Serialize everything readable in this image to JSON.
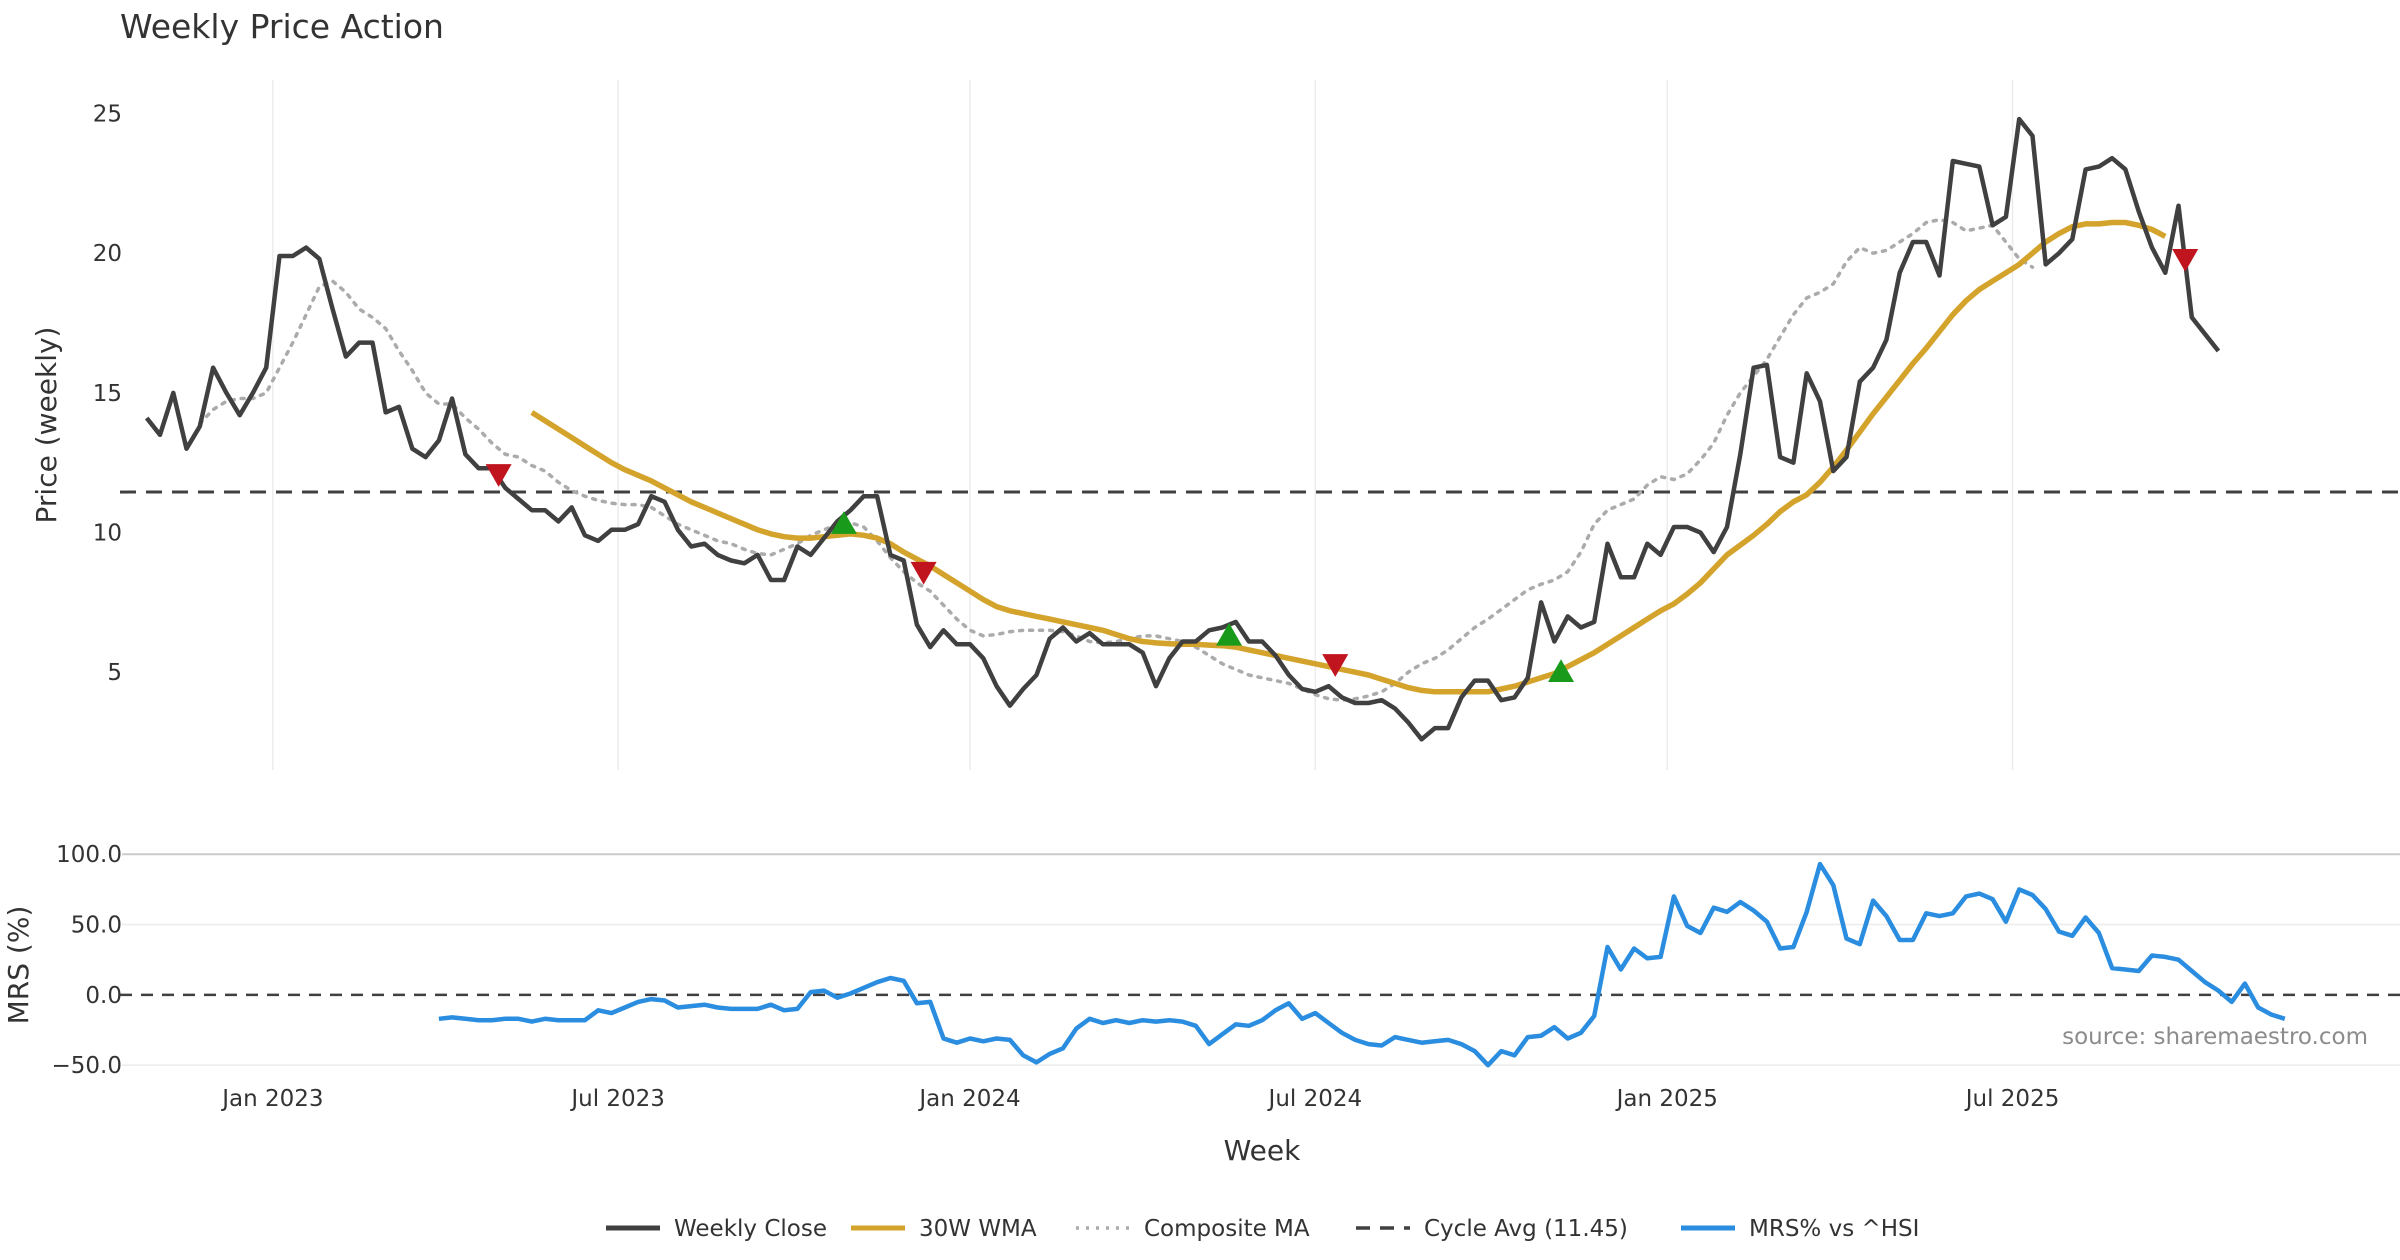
{
  "chart_data": [
    {
      "type": "line",
      "title": "Weekly Price Action",
      "ylabel": "Price (weekly)",
      "xlabel": "Week",
      "ylim": [
        1.5,
        26.2
      ],
      "yticks": [
        5,
        10,
        15,
        20,
        25
      ],
      "x_range_weeks": [
        0,
        155
      ],
      "x_tick_labels": [
        {
          "label": "Jan 2023",
          "week": 9.5
        },
        {
          "label": "Jul 2023",
          "week": 35.5
        },
        {
          "label": "Jan 2024",
          "week": 62
        },
        {
          "label": "Jul 2024",
          "week": 88
        },
        {
          "label": "Jan 2025",
          "week": 114.5
        },
        {
          "label": "Jul 2025",
          "week": 140.5
        }
      ],
      "cycle_avg": 11.45,
      "series": [
        {
          "name": "Weekly Close",
          "color": "#404040",
          "start_week": 0,
          "values": [
            14.1,
            13.5,
            15.0,
            13.0,
            13.8,
            15.9,
            15.0,
            14.2,
            15.0,
            15.9,
            19.9,
            19.9,
            20.2,
            19.8,
            18.0,
            16.3,
            16.8,
            16.8,
            14.3,
            14.5,
            13.0,
            12.7,
            13.3,
            14.8,
            12.8,
            12.3,
            12.3,
            11.6,
            11.2,
            10.8,
            10.8,
            10.4,
            10.9,
            9.9,
            9.7,
            10.1,
            10.1,
            10.3,
            11.3,
            11.1,
            10.1,
            9.5,
            9.6,
            9.2,
            9.0,
            8.9,
            9.2,
            8.3,
            8.3,
            9.5,
            9.2,
            9.8,
            10.4,
            10.8,
            11.3,
            11.3,
            9.2,
            9.0,
            6.7,
            5.9,
            6.5,
            6.0,
            6.0,
            5.5,
            4.5,
            3.8,
            4.4,
            4.9,
            6.2,
            6.6,
            6.1,
            6.4,
            6.0,
            6.0,
            6.0,
            5.7,
            4.5,
            5.5,
            6.1,
            6.1,
            6.5,
            6.6,
            6.8,
            6.1,
            6.1,
            5.6,
            4.9,
            4.4,
            4.3,
            4.5,
            4.1,
            3.9,
            3.9,
            4.0,
            3.7,
            3.2,
            2.6,
            3.0,
            3.0,
            4.1,
            4.7,
            4.7,
            4.0,
            4.1,
            4.8,
            7.5,
            6.1,
            7.0,
            6.6,
            6.8,
            9.6,
            8.4,
            8.4,
            9.6,
            9.2,
            10.2,
            10.2,
            10.0,
            9.3,
            10.2,
            12.8,
            15.9,
            16.0,
            12.7,
            12.5,
            15.7,
            14.7,
            12.2,
            12.7,
            15.4,
            15.9,
            16.9,
            19.3,
            20.4,
            20.4,
            19.2,
            23.3,
            23.2,
            23.1,
            21.0,
            21.3,
            24.8,
            24.2,
            19.6,
            20.0,
            20.5,
            23.0,
            23.1,
            23.4,
            23.0,
            21.5,
            20.2,
            19.3,
            21.7,
            17.7,
            17.1,
            16.5
          ]
        },
        {
          "name": "30W WMA",
          "color": "#d4a32b",
          "start_week": 29,
          "values": [
            14.3,
            14.0,
            13.7,
            13.4,
            13.1,
            12.8,
            12.5,
            12.25,
            12.05,
            11.85,
            11.6,
            11.35,
            11.1,
            10.9,
            10.7,
            10.5,
            10.3,
            10.1,
            9.95,
            9.85,
            9.8,
            9.8,
            9.85,
            9.9,
            9.95,
            9.9,
            9.8,
            9.6,
            9.3,
            9.05,
            8.8,
            8.5,
            8.2,
            7.9,
            7.6,
            7.35,
            7.2,
            7.1,
            7.0,
            6.9,
            6.8,
            6.7,
            6.6,
            6.5,
            6.35,
            6.2,
            6.1,
            6.05,
            6.02,
            6.0,
            6.0,
            5.97,
            5.95,
            5.9,
            5.8,
            5.7,
            5.6,
            5.5,
            5.4,
            5.3,
            5.2,
            5.1,
            5.0,
            4.9,
            4.75,
            4.6,
            4.45,
            4.35,
            4.3,
            4.3,
            4.3,
            4.3,
            4.3,
            4.4,
            4.5,
            4.65,
            4.8,
            4.95,
            5.2,
            5.45,
            5.7,
            6.0,
            6.3,
            6.6,
            6.9,
            7.2,
            7.45,
            7.8,
            8.2,
            8.7,
            9.2,
            9.55,
            9.9,
            10.3,
            10.75,
            11.1,
            11.35,
            11.8,
            12.35,
            12.95,
            13.6,
            14.25,
            14.85,
            15.45,
            16.05,
            16.6,
            17.2,
            17.8,
            18.3,
            18.7,
            19.0,
            19.3,
            19.6,
            20.0,
            20.4,
            20.7,
            20.95,
            21.05,
            21.05,
            21.1,
            21.1,
            21.0,
            20.85,
            20.6
          ]
        },
        {
          "name": "Composite MA",
          "color": "#ababab",
          "dash": "dotted",
          "start_week": 4,
          "values": [
            13.9,
            14.4,
            14.7,
            14.8,
            14.8,
            15.0,
            15.9,
            16.8,
            17.8,
            18.8,
            19.0,
            18.6,
            18.0,
            17.7,
            17.3,
            16.5,
            15.8,
            15.0,
            14.6,
            14.6,
            14.1,
            13.7,
            13.2,
            12.8,
            12.7,
            12.4,
            12.2,
            11.8,
            11.5,
            11.3,
            11.15,
            11.05,
            11.0,
            11.0,
            10.9,
            10.6,
            10.3,
            10.1,
            9.9,
            9.7,
            9.6,
            9.4,
            9.25,
            9.2,
            9.4,
            9.6,
            9.9,
            10.1,
            10.3,
            10.35,
            10.2,
            9.7,
            9.1,
            8.6,
            8.2,
            7.9,
            7.4,
            6.9,
            6.5,
            6.3,
            6.35,
            6.45,
            6.5,
            6.5,
            6.5,
            6.45,
            6.3,
            6.1,
            6.05,
            6.1,
            6.2,
            6.3,
            6.3,
            6.2,
            6.1,
            5.9,
            5.6,
            5.3,
            5.1,
            4.9,
            4.8,
            4.7,
            4.6,
            4.4,
            4.2,
            4.05,
            4.0,
            4.05,
            4.15,
            4.3,
            4.6,
            5.0,
            5.3,
            5.5,
            5.8,
            6.2,
            6.6,
            6.9,
            7.25,
            7.6,
            7.95,
            8.15,
            8.3,
            8.6,
            9.3,
            10.3,
            10.8,
            11.0,
            11.2,
            11.7,
            12.0,
            11.9,
            12.1,
            12.6,
            13.2,
            14.2,
            15.0,
            15.6,
            16.2,
            17.0,
            17.8,
            18.4,
            18.6,
            18.9,
            19.7,
            20.2,
            20.0,
            20.1,
            20.4,
            20.7,
            21.1,
            21.2,
            21.1,
            20.8,
            20.9,
            21.0,
            20.4,
            19.8,
            19.5
          ]
        }
      ],
      "markers": [
        {
          "type": "sell",
          "color": "#c0141e",
          "week": 26.5,
          "value": 12.1
        },
        {
          "type": "buy",
          "color": "#1a9a1a",
          "week": 52.5,
          "value": 10.3
        },
        {
          "type": "sell",
          "color": "#c0141e",
          "week": 58.5,
          "value": 8.6
        },
        {
          "type": "buy",
          "color": "#1a9a1a",
          "week": 81.5,
          "value": 6.3
        },
        {
          "type": "sell",
          "color": "#c0141e",
          "week": 89.5,
          "value": 5.3
        },
        {
          "type": "buy",
          "color": "#1a9a1a",
          "week": 106.5,
          "value": 5.0
        },
        {
          "type": "sell",
          "color": "#c0141e",
          "week": 153.5,
          "value": 19.8
        }
      ]
    },
    {
      "type": "line",
      "ylabel": "MRS (%)",
      "ylim": [
        -52,
        103
      ],
      "yticks": [
        100.0,
        50.0,
        0.0,
        -50.0
      ],
      "ytick_labels": [
        "100.0",
        "50.0",
        "0.0",
        "−50.0"
      ],
      "series": [
        {
          "name": "MRS% vs ^HSI",
          "color": "#2a8de0",
          "start_week": 22,
          "values": [
            -17,
            -16,
            -17,
            -18,
            -18,
            -17,
            -17,
            -19,
            -17,
            -18,
            -18,
            -18,
            -11,
            -13,
            -9,
            -5,
            -3,
            -4,
            -9,
            -8,
            -7,
            -9,
            -10,
            -10,
            -10,
            -7,
            -11,
            -10,
            2,
            3,
            -2,
            1,
            5,
            9,
            12,
            10,
            -6,
            -5,
            -31,
            -34,
            -31,
            -33,
            -31,
            -32,
            -43,
            -48,
            -42,
            -38,
            -24,
            -17,
            -20,
            -18,
            -20,
            -18,
            -19,
            -18,
            -19,
            -22,
            -35,
            -28,
            -21,
            -22,
            -18,
            -11,
            -6,
            -17,
            -13,
            -20,
            -27,
            -32,
            -35,
            -36,
            -30,
            -32,
            -34,
            -33,
            -32,
            -35,
            -40,
            -50,
            -40,
            -43,
            -30,
            -29,
            -23,
            -31,
            -27,
            -15,
            34,
            18,
            33,
            26,
            27,
            70,
            49,
            44,
            62,
            59,
            66,
            60,
            52,
            33,
            34,
            59,
            93,
            78,
            40,
            36,
            67,
            56,
            39,
            39,
            58,
            56,
            58,
            70,
            72,
            68,
            52,
            75,
            71,
            61,
            45,
            42,
            55,
            44,
            19,
            18,
            17,
            28,
            27,
            25,
            17,
            9,
            3,
            -5,
            8,
            -9,
            -14,
            -17
          ]
        }
      ],
      "reference_lines": [
        0
      ]
    }
  ],
  "legend": [
    {
      "label": "Weekly Close",
      "color": "#404040",
      "style": "solid"
    },
    {
      "label": "30W WMA",
      "color": "#d4a32b",
      "style": "solid"
    },
    {
      "label": "Composite MA",
      "color": "#ababab",
      "style": "dotted"
    },
    {
      "label": "Cycle Avg (11.45)",
      "color": "#404040",
      "style": "dashed"
    },
    {
      "label": "MRS% vs ^HSI",
      "color": "#2a8de0",
      "style": "solid"
    }
  ],
  "source": "source: sharemaestro.com"
}
